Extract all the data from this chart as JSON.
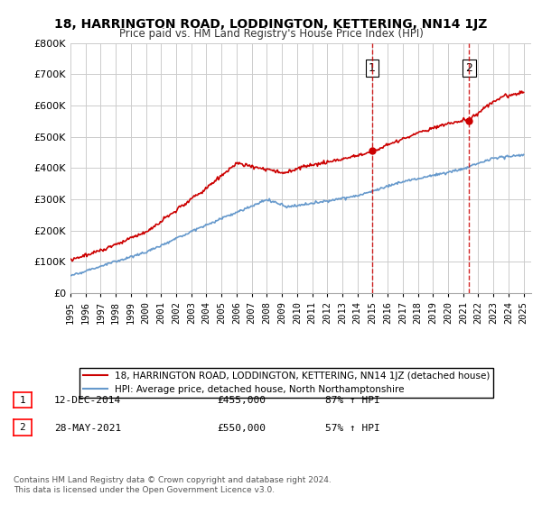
{
  "title": "18, HARRINGTON ROAD, LODDINGTON, KETTERING, NN14 1JZ",
  "subtitle": "Price paid vs. HM Land Registry's House Price Index (HPI)",
  "footer": "Contains HM Land Registry data © Crown copyright and database right 2024.\nThis data is licensed under the Open Government Licence v3.0.",
  "legend_line1": "18, HARRINGTON ROAD, LODDINGTON, KETTERING, NN14 1JZ (detached house)",
  "legend_line2": "HPI: Average price, detached house, North Northamptonshire",
  "transactions": [
    {
      "num": 1,
      "date": "12-DEC-2014",
      "price": "£455,000",
      "hpi": "87% ↑ HPI",
      "x_year": 2014.95
    },
    {
      "num": 2,
      "date": "28-MAY-2021",
      "price": "£550,000",
      "hpi": "57% ↑ HPI",
      "x_year": 2021.4
    }
  ],
  "red_color": "#cc0000",
  "blue_color": "#6699cc",
  "dashed_color": "#cc0000",
  "background_color": "#ffffff",
  "grid_color": "#cccccc",
  "ylim": [
    0,
    800000
  ],
  "xlim_start": 1995,
  "xlim_end": 2025.5
}
